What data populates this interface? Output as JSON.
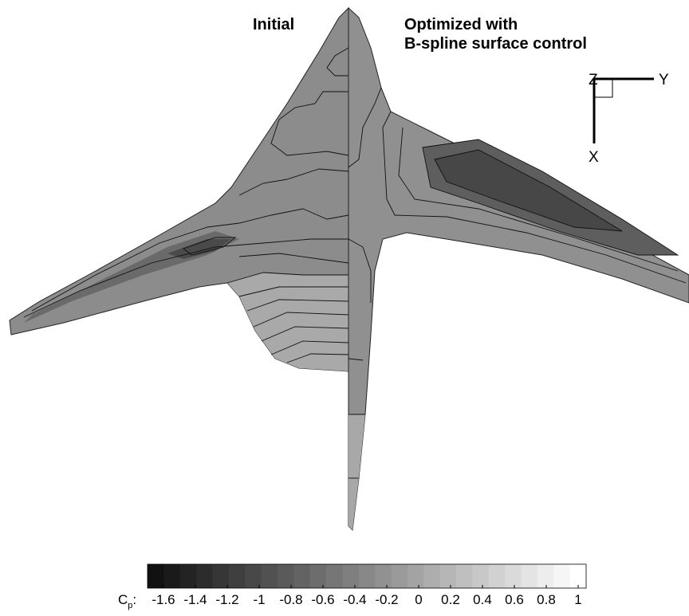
{
  "chart_data": {
    "type": "contour",
    "title_left": "Initial",
    "title_right": [
      "Optimized with",
      "B-spline surface control"
    ],
    "axis_triad": {
      "z": "Z",
      "y": "Y",
      "x": "X"
    },
    "colorbar_label": [
      "C",
      "p",
      ":"
    ],
    "xlim": [
      -1.7,
      1.05
    ],
    "xticks": [
      -1.6,
      -1.4,
      -1.2,
      -1,
      -0.8,
      -0.6,
      -0.4,
      -0.2,
      0,
      0.2,
      0.4,
      0.6,
      0.8,
      1
    ]
  }
}
